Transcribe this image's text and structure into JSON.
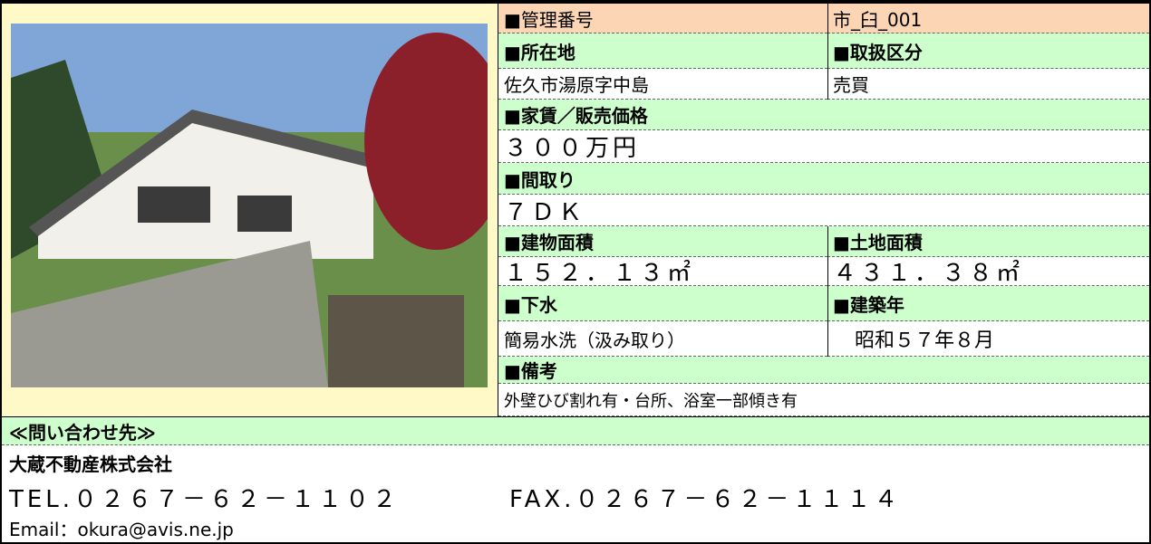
{
  "property": {
    "management_no_label": "■管理番号",
    "management_no": "市_臼_001",
    "location_label": "■所在地",
    "category_label": "■取扱区分",
    "location": "佐久市湯原字中島",
    "category": "売買",
    "price_label": "■家賃／販売価格",
    "price": "３００万円",
    "layout_label": "■間取り",
    "layout": "７ＤＫ",
    "building_area_label": "■建物面積",
    "land_area_label": "■土地面積",
    "building_area": "１５２．１３㎡",
    "land_area": "４３１．３８㎡",
    "sewage_label": "■下水",
    "built_label": "■建築年",
    "sewage": "簡易水洗（汲み取り）",
    "built": "昭和５７年８月",
    "remarks_label": "■備考",
    "remarks": "外壁ひび割れ有・台所、浴室一部傾き有"
  },
  "contact": {
    "heading": "≪問い合わせ先≫",
    "company": "大蔵不動産株式会社",
    "tel": "TEL.０２６７－６２－１１０２",
    "fax": "FAX.０２６７－６２－１１１４",
    "email": "Email：okura@avis.ne.jp"
  }
}
